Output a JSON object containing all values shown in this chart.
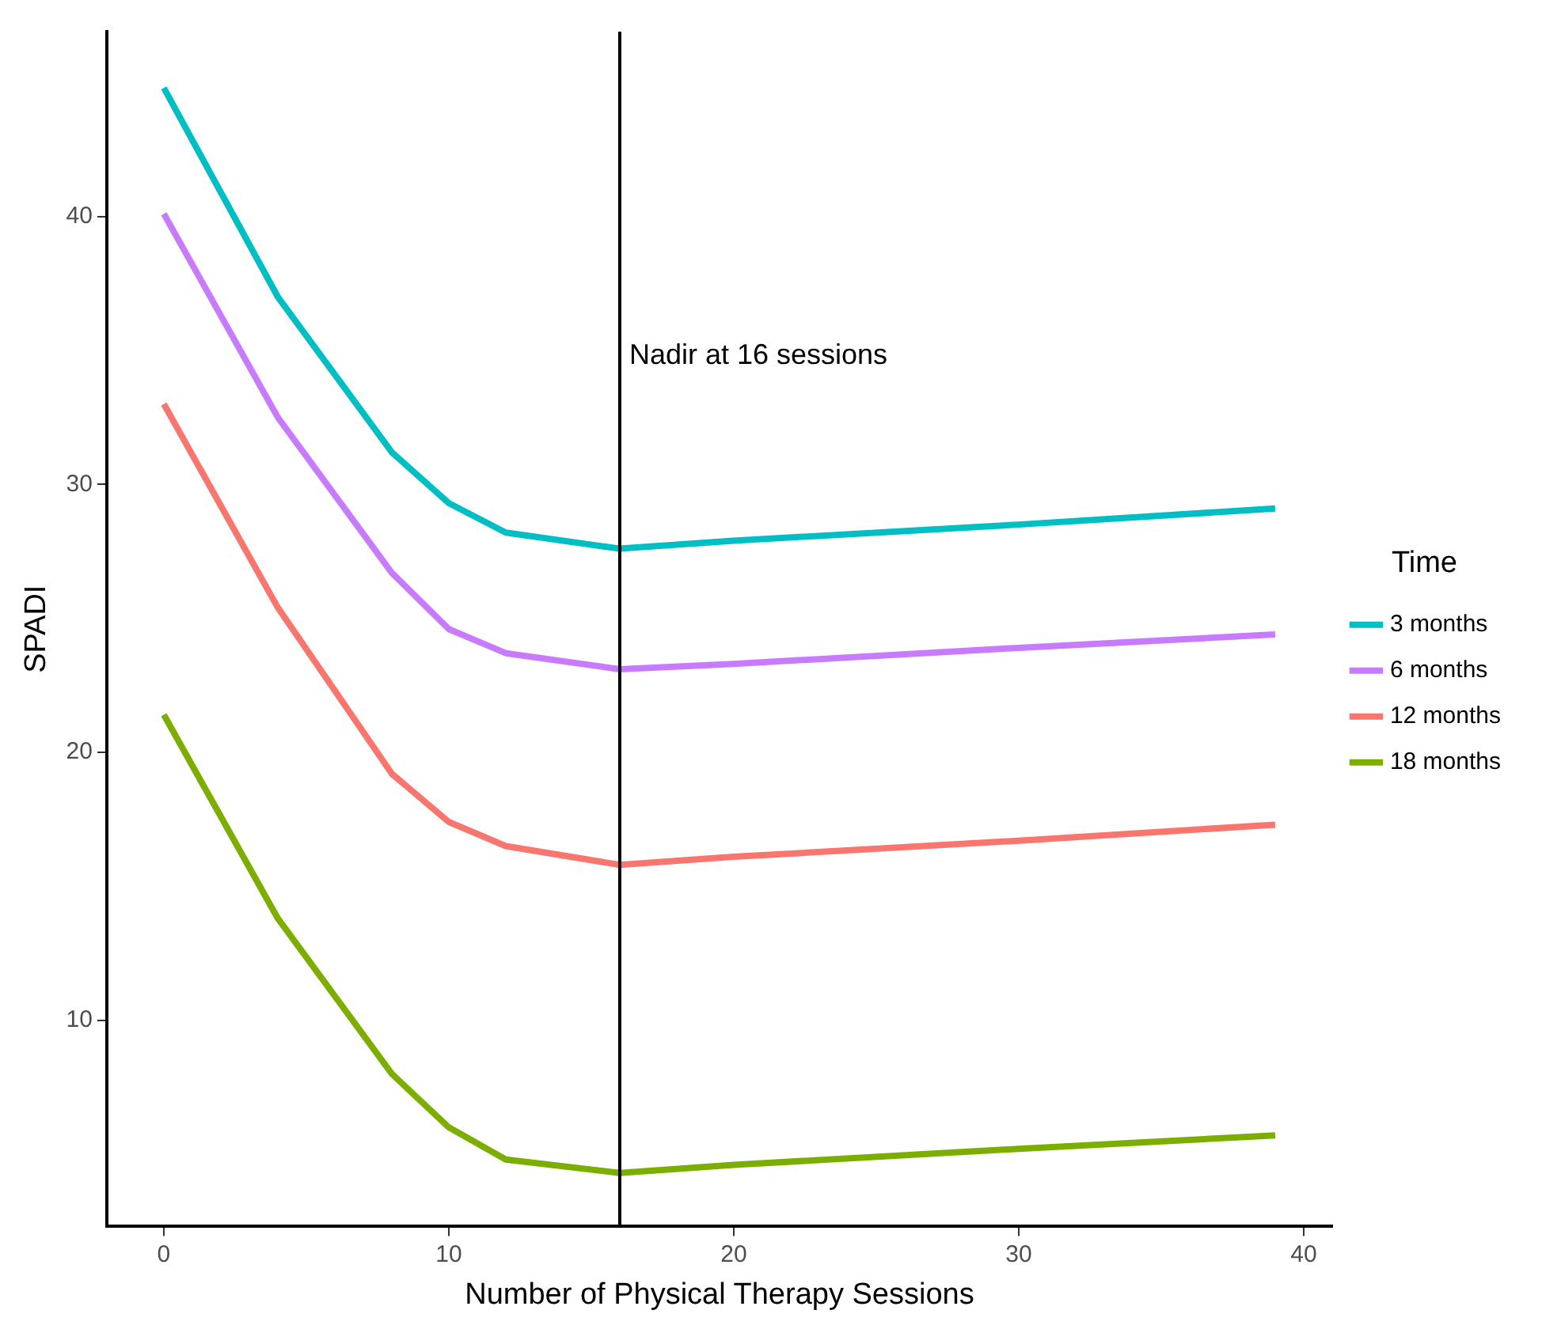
{
  "chart_data": {
    "type": "line",
    "xlabel": "Number of Physical Therapy Sessions",
    "ylabel": "SPADI",
    "legend_title": "Time",
    "legend": "right",
    "grid": false,
    "marker": "none",
    "line_style": "solid",
    "xlim": [
      -2,
      41
    ],
    "xticks": [
      0,
      10,
      20,
      30,
      40
    ],
    "ylim": [
      2.3,
      46.9
    ],
    "yticks": [
      10,
      20,
      30,
      40
    ],
    "x": [
      0,
      4,
      8,
      10,
      12,
      16,
      20,
      30,
      39
    ],
    "series": [
      {
        "name": "3 months",
        "color": "#00bfc4",
        "values": [
          44.8,
          37.0,
          31.2,
          29.3,
          28.2,
          27.6,
          27.9,
          28.5,
          29.1
        ]
      },
      {
        "name": "6 months",
        "color": "#c77cff",
        "values": [
          40.1,
          32.5,
          26.7,
          24.6,
          23.7,
          23.1,
          23.3,
          23.9,
          24.4
        ]
      },
      {
        "name": "12 months",
        "color": "#f8766d",
        "values": [
          33.0,
          25.4,
          19.2,
          17.4,
          16.5,
          15.8,
          16.1,
          16.7,
          17.3
        ]
      },
      {
        "name": "18 months",
        "color": "#7cae00",
        "values": [
          21.4,
          13.8,
          8.0,
          6.0,
          4.8,
          4.3,
          4.6,
          5.2,
          5.7
        ]
      }
    ],
    "ref_lines": [
      {
        "axis": "x",
        "value": 16,
        "label": "Nadir at 16 sessions",
        "color": "#000000"
      }
    ]
  }
}
